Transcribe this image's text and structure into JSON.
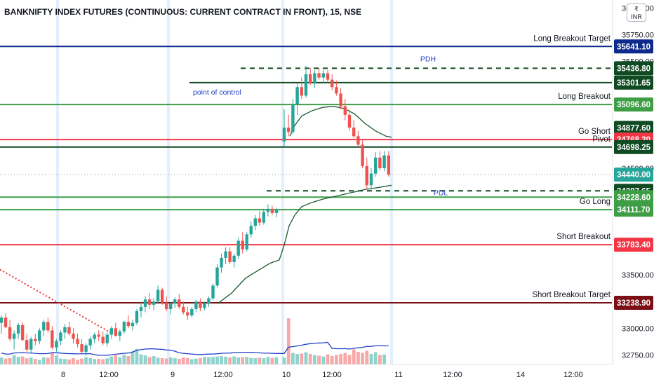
{
  "chart_title": "BANKNIFTY INDEX FUTURES (CONTINUOUS: CURRENT CONTRACT IN FRONT), 15, NSE",
  "currency_badge": {
    "symbol": "₹",
    "code": "INR"
  },
  "colors": {
    "up": "#26a69a",
    "down": "#ef5350",
    "vol_up": "#8fd3cd",
    "vol_down": "#f7a9a7",
    "navy": "#0d2a8c",
    "dark_green": "#0f4a22",
    "green": "#3f9e45",
    "red": "#f23645",
    "maroon": "#7b0f14",
    "vwap": "#1c5a2f",
    "volume_ma": "#2340c9"
  },
  "chart_data": {
    "type": "candlestick",
    "y_range": [
      32700,
      36050
    ],
    "y_ticks": [
      "36000.00",
      "35750.00",
      "35500.00",
      "34500.00",
      "33500.00",
      "33000.00",
      "32750.00"
    ],
    "x_labels": [
      "8",
      "12:00",
      "9",
      "12:00",
      "10",
      "12:00",
      "11",
      "12:00",
      "14",
      "12:00"
    ],
    "levels": [
      {
        "label": "Long Breakout Target",
        "price": 35641.1,
        "price_label": "35641.10",
        "style": "solid",
        "color_key": "navy"
      },
      {
        "label": "PDH",
        "price": 35436.8,
        "price_label": "35436.80",
        "style": "dashed",
        "color_key": "dark_green"
      },
      {
        "label": "point of control",
        "price": 35301.65,
        "price_label": "35301.65",
        "style": "solid",
        "color_key": "dark_green"
      },
      {
        "label": "Long Breakout",
        "price": 35096.6,
        "price_label": "35096.60",
        "style": "solid",
        "color_key": "green"
      },
      {
        "label": "",
        "price": 34877.6,
        "price_label": "34877.60",
        "style": "none",
        "color_key": "dark_green"
      },
      {
        "label": "Go Short",
        "price": 34768.3,
        "price_label": "34768.30",
        "style": "solid",
        "color_key": "red"
      },
      {
        "label": "Pivot",
        "price": 34698.25,
        "price_label": "34698.25",
        "style": "solid",
        "color_key": "dark_green"
      },
      {
        "label": "",
        "price": 34440.0,
        "price_label": "34440.00",
        "style": "dotted",
        "color_key": "up"
      },
      {
        "label": "",
        "price": 34287.65,
        "price_label": "34287.65",
        "style": "dashed",
        "color_key": "dark_green"
      },
      {
        "label": "PDL",
        "price": 34228.6,
        "price_label": "34228.60",
        "style": "solid",
        "color_key": "green"
      },
      {
        "label": "Go Long",
        "price": 34111.7,
        "price_label": "34111.70",
        "style": "solid",
        "color_key": "green"
      },
      {
        "label": "Short Breakout",
        "price": 33783.4,
        "price_label": "33783.40",
        "style": "solid",
        "color_key": "red"
      },
      {
        "label": "Short Breakout Target",
        "price": 33238.9,
        "price_label": "33238.90",
        "style": "solid",
        "color_key": "maroon"
      }
    ],
    "candles": [
      [
        33050,
        33120,
        32950,
        33100
      ],
      [
        33100,
        33140,
        33000,
        33010
      ],
      [
        33010,
        33080,
        32880,
        32900
      ],
      [
        32900,
        32980,
        32800,
        32950
      ],
      [
        32950,
        33050,
        32900,
        33030
      ],
      [
        33030,
        33060,
        32880,
        32890
      ],
      [
        32890,
        32950,
        32780,
        32800
      ],
      [
        32800,
        32920,
        32760,
        32900
      ],
      [
        32900,
        32950,
        32840,
        32880
      ],
      [
        32880,
        33000,
        32850,
        32980
      ],
      [
        32980,
        33080,
        32930,
        33060
      ],
      [
        33060,
        33100,
        32960,
        32980
      ],
      [
        32980,
        33020,
        32800,
        32820
      ],
      [
        32820,
        32900,
        32780,
        32880
      ],
      [
        32880,
        32980,
        32840,
        32960
      ],
      [
        32960,
        33040,
        32900,
        33010
      ],
      [
        33010,
        33060,
        32930,
        32950
      ],
      [
        32950,
        33000,
        32860,
        32900
      ],
      [
        32900,
        32950,
        32820,
        32850
      ],
      [
        32850,
        32900,
        32750,
        32780
      ],
      [
        32780,
        32860,
        32740,
        32840
      ],
      [
        32840,
        32920,
        32800,
        32900
      ],
      [
        32900,
        32960,
        32860,
        32940
      ],
      [
        32940,
        32980,
        32880,
        32920
      ],
      [
        32920,
        32970,
        32840,
        32860
      ],
      [
        32860,
        32960,
        32830,
        32940
      ],
      [
        32940,
        33020,
        32900,
        33000
      ],
      [
        33000,
        33050,
        32920,
        32930
      ],
      [
        32930,
        32990,
        32880,
        32970
      ],
      [
        32970,
        33070,
        32950,
        33060
      ],
      [
        33060,
        33120,
        33000,
        33020
      ],
      [
        33020,
        33080,
        32980,
        33050
      ],
      [
        33050,
        33180,
        33030,
        33160
      ],
      [
        33160,
        33250,
        33100,
        33200
      ],
      [
        33200,
        33300,
        33150,
        33270
      ],
      [
        33270,
        33330,
        33180,
        33220
      ],
      [
        33220,
        33280,
        33170,
        33250
      ],
      [
        33250,
        33400,
        33230,
        33360
      ],
      [
        33360,
        33380,
        33220,
        33240
      ],
      [
        33240,
        33300,
        33160,
        33180
      ],
      [
        33180,
        33250,
        33130,
        33230
      ],
      [
        33230,
        33290,
        33190,
        33270
      ],
      [
        33270,
        33320,
        33180,
        33200
      ],
      [
        33200,
        33250,
        33130,
        33150
      ],
      [
        33150,
        33200,
        33080,
        33120
      ],
      [
        33120,
        33200,
        33100,
        33180
      ],
      [
        33180,
        33270,
        33150,
        33250
      ],
      [
        33250,
        33280,
        33160,
        33190
      ],
      [
        33190,
        33250,
        33170,
        33230
      ],
      [
        33230,
        33300,
        33200,
        33280
      ],
      [
        33280,
        33420,
        33260,
        33400
      ],
      [
        33400,
        33600,
        33380,
        33570
      ],
      [
        33570,
        33700,
        33520,
        33660
      ],
      [
        33660,
        33760,
        33600,
        33720
      ],
      [
        33720,
        33760,
        33600,
        33620
      ],
      [
        33620,
        33700,
        33570,
        33680
      ],
      [
        33680,
        33850,
        33650,
        33820
      ],
      [
        33820,
        33900,
        33700,
        33740
      ],
      [
        33740,
        33900,
        33720,
        33880
      ],
      [
        33880,
        34000,
        33850,
        33960
      ],
      [
        33960,
        34060,
        33920,
        34030
      ],
      [
        34030,
        34100,
        33960,
        33990
      ],
      [
        33990,
        34120,
        33970,
        34090
      ],
      [
        34090,
        34160,
        34050,
        34120
      ],
      [
        34120,
        34150,
        34060,
        34080
      ],
      [
        34080,
        34130,
        34040,
        34110
      ],
      [
        34750,
        35050,
        34700,
        34880
      ],
      [
        34880,
        35000,
        34800,
        34840
      ],
      [
        34840,
        35150,
        34820,
        35100
      ],
      [
        35100,
        35300,
        35000,
        35260
      ],
      [
        35260,
        35350,
        35150,
        35180
      ],
      [
        35180,
        35460,
        35160,
        35380
      ],
      [
        35380,
        35440,
        35280,
        35300
      ],
      [
        35300,
        35420,
        35250,
        35390
      ],
      [
        35390,
        35440,
        35330,
        35350
      ],
      [
        35350,
        35420,
        35300,
        35390
      ],
      [
        35390,
        35420,
        35300,
        35330
      ],
      [
        35330,
        35380,
        35230,
        35260
      ],
      [
        35260,
        35320,
        35180,
        35200
      ],
      [
        35200,
        35250,
        35050,
        35080
      ],
      [
        35080,
        35150,
        34950,
        35000
      ],
      [
        35000,
        35050,
        34850,
        34880
      ],
      [
        34880,
        34950,
        34780,
        34800
      ],
      [
        34800,
        34850,
        34700,
        34720
      ],
      [
        34720,
        34760,
        34500,
        34520
      ],
      [
        34520,
        34600,
        34300,
        34340
      ],
      [
        34340,
        34500,
        34300,
        34450
      ],
      [
        34450,
        34650,
        34420,
        34600
      ],
      [
        34600,
        34660,
        34480,
        34500
      ],
      [
        34500,
        34660,
        34470,
        34620
      ],
      [
        34620,
        34660,
        34420,
        34440
      ]
    ],
    "volume_relative": [
      0.34,
      0.28,
      0.31,
      0.44,
      0.36,
      0.38,
      0.29,
      0.33,
      0.26,
      0.22,
      0.34,
      0.32,
      0.55,
      0.42,
      0.28,
      0.26,
      0.24,
      0.3,
      0.22,
      0.28,
      0.35,
      0.3,
      0.26,
      0.27,
      0.25,
      0.29,
      0.38,
      0.44,
      0.34,
      0.46,
      0.4,
      0.62,
      0.74,
      0.48,
      0.43,
      0.35,
      0.4,
      0.32,
      0.3,
      0.28,
      0.34,
      0.3,
      0.27,
      0.33,
      0.31,
      0.25,
      0.28,
      0.3,
      0.36,
      0.35,
      0.36,
      0.38,
      0.4,
      0.37,
      0.34,
      0.38,
      0.33,
      0.35,
      0.36,
      0.31,
      0.3,
      0.32,
      0.3,
      0.36,
      0.31,
      0.34,
      0.33,
      2.2,
      0.55,
      0.5,
      0.52,
      0.58,
      0.5,
      0.45,
      0.42,
      0.38,
      0.48,
      0.4,
      0.45,
      0.5,
      0.55,
      0.45,
      0.72,
      0.6,
      0.55,
      0.65,
      0.5,
      0.58,
      0.45,
      0.48
    ]
  }
}
